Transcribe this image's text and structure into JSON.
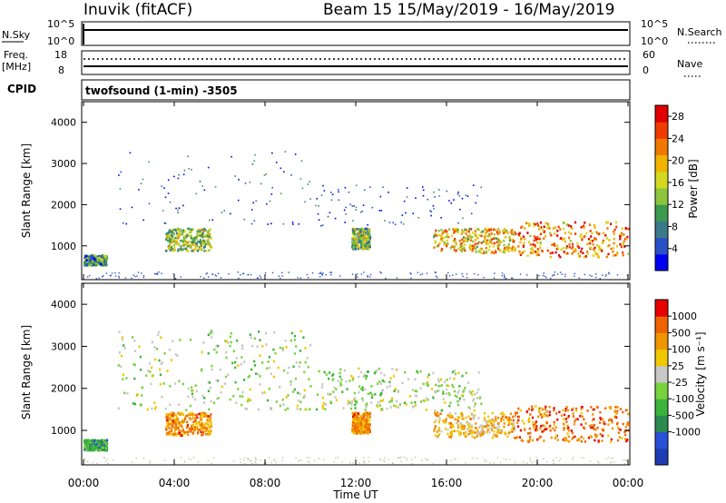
{
  "header": {
    "station": "Inuvik (fitACF)",
    "beam_date": "Beam 15  15/May/2019 - 16/May/2019",
    "program": "twofsound (1-min) -3505"
  },
  "params": {
    "nsky_label": "N.Sky",
    "nsky_ticks": [
      "10^5",
      "10^0"
    ],
    "nsearch_label": "N.Search",
    "nsearch_ticks": [
      "10^5",
      "10^0"
    ],
    "freq_label": "Freq.",
    "freq_unit": "[MHz]",
    "freq_ticks": [
      "18",
      "8"
    ],
    "nave_label": "Nave",
    "nave_ticks": [
      "60",
      "0"
    ],
    "cpid_label": "CPID"
  },
  "chart_data": [
    {
      "type": "heatmap",
      "title": "",
      "ylabel": "Slant Range [km]",
      "ylim": [
        180,
        4500
      ],
      "yticks": [
        "1000",
        "2000",
        "3000",
        "4000"
      ],
      "xlabel": "Time UT",
      "xlim": [
        "00:00",
        "24:00"
      ],
      "colorbar": {
        "label": "Power [dB]",
        "ticks": [
          "4",
          "8",
          "12",
          "16",
          "20",
          "24",
          "28"
        ],
        "colors": [
          "#0000f0",
          "#2a50c8",
          "#3a7a8a",
          "#3c9a50",
          "#8cc43c",
          "#d4d820",
          "#f0b400",
          "#f07800",
          "#f03c00",
          "#e00000"
        ],
        "range": [
          0,
          30
        ]
      },
      "echo_regions": [
        {
          "t": [
            0.0,
            1.0
          ],
          "range_km": [
            550,
            800
          ],
          "level": 0.3
        },
        {
          "t": [
            3.6,
            5.6
          ],
          "range_km": [
            900,
            1450
          ],
          "level": 0.45
        },
        {
          "t": [
            11.8,
            12.6
          ],
          "range_km": [
            950,
            1450
          ],
          "level": 0.4
        },
        {
          "t": [
            15.4,
            19.0
          ],
          "range_km": [
            850,
            1450
          ],
          "level": 0.65
        },
        {
          "t": [
            19.0,
            24.0
          ],
          "range_km": [
            750,
            1600
          ],
          "level": 0.75
        },
        {
          "t": [
            1.5,
            10.0
          ],
          "range_km": [
            1500,
            3400
          ],
          "level": 0.1
        },
        {
          "t": [
            10.2,
            17.5
          ],
          "range_km": [
            1500,
            2500
          ],
          "level": 0.1
        }
      ]
    },
    {
      "type": "heatmap",
      "title": "",
      "ylabel": "Slant Range [km]",
      "ylim": [
        180,
        4500
      ],
      "yticks": [
        "1000",
        "2000",
        "3000",
        "4000"
      ],
      "xlabel": "Time UT",
      "xlim": [
        "00:00",
        "24:00"
      ],
      "xticks": [
        "00:00",
        "04:00",
        "08:00",
        "12:00",
        "16:00",
        "20:00",
        "00:00"
      ],
      "colorbar": {
        "label": "Velocity [m s⁻¹]",
        "ticks": [
          "1000",
          "500",
          "100",
          "25",
          "-25",
          "-100",
          "-500",
          "-1000"
        ],
        "colors": [
          "#1e3cb4",
          "#2850d8",
          "#2a8a50",
          "#3cb43c",
          "#78d23c",
          "#c8c8c8",
          "#f0c800",
          "#f09600",
          "#f06400",
          "#e60000"
        ],
        "range": [
          -1000,
          1000
        ]
      },
      "echo_regions": [
        {
          "t": [
            0.0,
            1.0
          ],
          "range_km": [
            550,
            800
          ],
          "level": 0.3
        },
        {
          "t": [
            3.6,
            5.6
          ],
          "range_km": [
            900,
            1450
          ],
          "level": 0.8
        },
        {
          "t": [
            11.8,
            12.6
          ],
          "range_km": [
            950,
            1450
          ],
          "level": 0.8
        },
        {
          "t": [
            15.4,
            19.0
          ],
          "range_km": [
            850,
            1450
          ],
          "level": 0.7
        },
        {
          "t": [
            19.0,
            24.0
          ],
          "range_km": [
            750,
            1600
          ],
          "level": 0.85
        },
        {
          "t": [
            1.5,
            10.0
          ],
          "range_km": [
            1500,
            3400
          ],
          "level": 0.5
        },
        {
          "t": [
            10.2,
            17.5
          ],
          "range_km": [
            1500,
            2500
          ],
          "level": 0.5
        }
      ]
    }
  ]
}
